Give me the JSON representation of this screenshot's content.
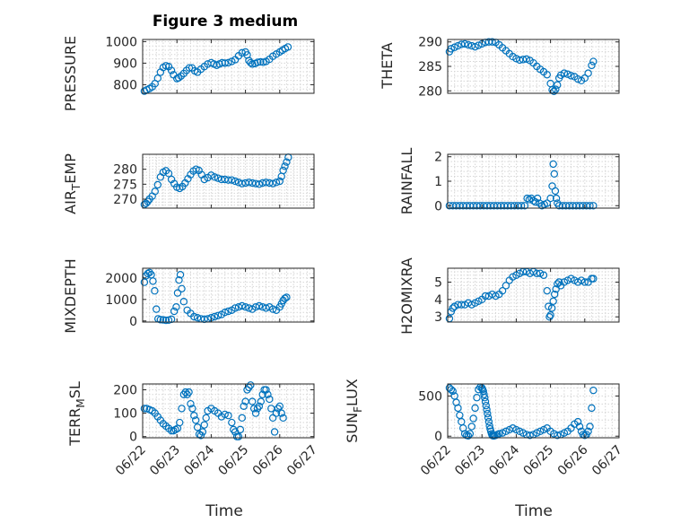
{
  "figure": {
    "title": "Figure 3 medium",
    "marker_color": "#0072bd"
  },
  "chart_data": [
    {
      "type": "scatter",
      "name": "PRESSURE",
      "ylabel": "PRESSURE",
      "xlim": [
        0,
        5
      ],
      "ylim": [
        760,
        1010
      ],
      "xticks": [
        0,
        1,
        2,
        3,
        4,
        5
      ],
      "xticklabels": [
        "06/22",
        "06/23",
        "06/24",
        "06/25",
        "06/26",
        "06/27"
      ],
      "yticks": [
        800,
        900,
        1000
      ],
      "show_xticklabels": false,
      "x": [
        0.05,
        0.12,
        0.2,
        0.28,
        0.36,
        0.44,
        0.52,
        0.6,
        0.68,
        0.76,
        0.84,
        0.9,
        1.0,
        1.05,
        1.12,
        1.2,
        1.28,
        1.36,
        1.44,
        1.52,
        1.6,
        1.7,
        1.8,
        1.9,
        2.0,
        2.08,
        2.16,
        2.24,
        2.32,
        2.4,
        2.5,
        2.6,
        2.7,
        2.8,
        2.9,
        3.0,
        3.05,
        3.1,
        3.15,
        3.2,
        3.28,
        3.36,
        3.44,
        3.52,
        3.6,
        3.7,
        3.8,
        3.9,
        4.0,
        4.08,
        4.16,
        4.24
      ],
      "y": [
        770,
        776,
        782,
        790,
        805,
        830,
        858,
        880,
        888,
        884,
        866,
        846,
        828,
        832,
        840,
        852,
        866,
        878,
        878,
        864,
        858,
        872,
        884,
        896,
        902,
        896,
        890,
        896,
        902,
        900,
        902,
        908,
        916,
        934,
        948,
        952,
        938,
        912,
        902,
        896,
        898,
        904,
        906,
        904,
        908,
        918,
        932,
        942,
        952,
        960,
        968,
        975
      ]
    },
    {
      "type": "scatter",
      "name": "THETA",
      "ylabel": "THETA",
      "xlim": [
        0,
        5
      ],
      "ylim": [
        279.5,
        290.5
      ],
      "xticks": [
        0,
        1,
        2,
        3,
        4,
        5
      ],
      "xticklabels": [
        "06/22",
        "06/23",
        "06/24",
        "06/25",
        "06/26",
        "06/27"
      ],
      "yticks": [
        280,
        285,
        290
      ],
      "show_xticklabels": false,
      "x": [
        0.05,
        0.1,
        0.2,
        0.3,
        0.4,
        0.5,
        0.6,
        0.7,
        0.8,
        0.9,
        1.0,
        1.1,
        1.2,
        1.3,
        1.4,
        1.5,
        1.6,
        1.7,
        1.8,
        1.9,
        2.0,
        2.1,
        2.2,
        2.3,
        2.4,
        2.5,
        2.6,
        2.7,
        2.8,
        2.9,
        3.0,
        3.05,
        3.1,
        3.15,
        3.2,
        3.25,
        3.3,
        3.4,
        3.5,
        3.6,
        3.7,
        3.8,
        3.9,
        4.0,
        4.1,
        4.2,
        4.25
      ],
      "y": [
        288.0,
        288.6,
        288.9,
        289.2,
        289.5,
        289.6,
        289.4,
        289.2,
        289.0,
        289.3,
        289.6,
        289.9,
        290.0,
        290.0,
        289.9,
        289.4,
        288.8,
        288.2,
        287.6,
        287.0,
        286.6,
        286.3,
        286.4,
        286.5,
        286.2,
        285.7,
        285.0,
        284.4,
        283.9,
        283.3,
        281.5,
        280.2,
        279.9,
        280.3,
        281.2,
        282.6,
        283.2,
        283.6,
        283.4,
        283.1,
        282.9,
        282.4,
        282.1,
        282.6,
        283.6,
        285.2,
        286.0
      ]
    },
    {
      "type": "scatter",
      "name": "AIR_TEMP",
      "ylabel": "AIR_TEMP",
      "xlim": [
        0,
        5
      ],
      "ylim": [
        267,
        285
      ],
      "xticks": [
        0,
        1,
        2,
        3,
        4,
        5
      ],
      "xticklabels": [
        "06/22",
        "06/23",
        "06/24",
        "06/25",
        "06/26",
        "06/27"
      ],
      "yticks": [
        270,
        275,
        280
      ],
      "show_xticklabels": false,
      "x": [
        0.05,
        0.1,
        0.15,
        0.2,
        0.28,
        0.36,
        0.44,
        0.52,
        0.6,
        0.68,
        0.76,
        0.84,
        0.92,
        1.0,
        1.08,
        1.16,
        1.24,
        1.32,
        1.4,
        1.48,
        1.56,
        1.64,
        1.72,
        1.8,
        1.9,
        2.0,
        2.1,
        2.2,
        2.3,
        2.4,
        2.5,
        2.6,
        2.7,
        2.8,
        2.9,
        3.0,
        3.1,
        3.2,
        3.3,
        3.4,
        3.5,
        3.6,
        3.7,
        3.8,
        3.9,
        4.0,
        4.05,
        4.1,
        4.15,
        4.2,
        4.25
      ],
      "y": [
        268.2,
        268.6,
        269.2,
        270.0,
        271.0,
        272.6,
        274.8,
        277.4,
        279.0,
        279.5,
        278.6,
        276.6,
        275.2,
        274.0,
        273.6,
        274.2,
        275.4,
        276.8,
        278.2,
        279.4,
        280.0,
        279.6,
        278.2,
        276.6,
        277.2,
        278.0,
        277.4,
        277.0,
        276.6,
        276.6,
        276.4,
        276.4,
        276.0,
        275.6,
        275.2,
        275.4,
        275.6,
        275.4,
        275.2,
        275.0,
        275.4,
        275.6,
        275.4,
        275.2,
        275.6,
        276.0,
        277.6,
        279.6,
        281.0,
        282.4,
        284.0
      ]
    },
    {
      "type": "scatter",
      "name": "RAINFALL",
      "ylabel": "RAINFALL",
      "xlim": [
        0,
        5
      ],
      "ylim": [
        -0.1,
        2.1
      ],
      "xticks": [
        0,
        1,
        2,
        3,
        4,
        5
      ],
      "xticklabels": [
        "06/22",
        "06/23",
        "06/24",
        "06/25",
        "06/26",
        "06/27"
      ],
      "yticks": [
        0,
        1,
        2
      ],
      "show_xticklabels": false,
      "x": [
        0.05,
        0.15,
        0.25,
        0.35,
        0.45,
        0.55,
        0.65,
        0.75,
        0.85,
        0.95,
        1.05,
        1.15,
        1.25,
        1.35,
        1.45,
        1.55,
        1.65,
        1.75,
        1.85,
        1.95,
        2.05,
        2.15,
        2.25,
        2.32,
        2.38,
        2.44,
        2.5,
        2.56,
        2.62,
        2.68,
        2.75,
        2.82,
        2.9,
        3.0,
        3.05,
        3.08,
        3.11,
        3.14,
        3.17,
        3.2,
        3.25,
        3.35,
        3.45,
        3.55,
        3.65,
        3.75,
        3.85,
        3.95,
        4.05,
        4.15,
        4.25
      ],
      "y": [
        0,
        0,
        0,
        0,
        0,
        0,
        0,
        0,
        0,
        0,
        0,
        0,
        0,
        0,
        0,
        0,
        0,
        0,
        0,
        0,
        0,
        0,
        0,
        0.3,
        0.25,
        0.3,
        0.2,
        0.15,
        0.3,
        0.1,
        0,
        0.05,
        0.1,
        0.3,
        0.8,
        1.7,
        1.3,
        0.6,
        0.3,
        0.1,
        0,
        0,
        0,
        0,
        0,
        0,
        0,
        0,
        0,
        0,
        0
      ]
    },
    {
      "type": "scatter",
      "name": "MIXDEPTH",
      "ylabel": "MIXDEPTH",
      "xlim": [
        0,
        5
      ],
      "ylim": [
        -50,
        2450
      ],
      "xticks": [
        0,
        1,
        2,
        3,
        4,
        5
      ],
      "xticklabels": [
        "06/22",
        "06/23",
        "06/24",
        "06/25",
        "06/26",
        "06/27"
      ],
      "yticks": [
        0,
        1000,
        2000
      ],
      "show_xticklabels": false,
      "x": [
        0.05,
        0.1,
        0.15,
        0.2,
        0.25,
        0.3,
        0.35,
        0.4,
        0.45,
        0.52,
        0.6,
        0.68,
        0.76,
        0.84,
        0.92,
        0.98,
        1.02,
        1.06,
        1.1,
        1.14,
        1.2,
        1.3,
        1.4,
        1.5,
        1.6,
        1.7,
        1.8,
        1.9,
        2.0,
        2.1,
        2.2,
        2.3,
        2.4,
        2.5,
        2.6,
        2.7,
        2.8,
        2.9,
        3.0,
        3.1,
        3.2,
        3.3,
        3.4,
        3.5,
        3.6,
        3.7,
        3.8,
        3.9,
        4.0,
        4.05,
        4.1,
        4.15,
        4.2
      ],
      "y": [
        1800,
        2100,
        2200,
        2250,
        2150,
        1850,
        1400,
        550,
        100,
        60,
        50,
        30,
        40,
        80,
        450,
        650,
        1300,
        1900,
        2150,
        1500,
        900,
        500,
        350,
        200,
        150,
        100,
        80,
        100,
        150,
        200,
        250,
        300,
        400,
        450,
        500,
        600,
        650,
        700,
        650,
        600,
        550,
        650,
        700,
        650,
        600,
        650,
        550,
        500,
        650,
        800,
        950,
        1050,
        1100
      ]
    },
    {
      "type": "scatter",
      "name": "H2OMIXRA",
      "ylabel": "H2OMIXRA",
      "xlim": [
        0,
        5
      ],
      "ylim": [
        2.7,
        5.8
      ],
      "xticks": [
        0,
        1,
        2,
        3,
        4,
        5
      ],
      "xticklabels": [
        "06/22",
        "06/23",
        "06/24",
        "06/25",
        "06/26",
        "06/27"
      ],
      "yticks": [
        3,
        4,
        5
      ],
      "show_xticklabels": false,
      "x": [
        0.05,
        0.1,
        0.15,
        0.2,
        0.3,
        0.4,
        0.5,
        0.6,
        0.7,
        0.8,
        0.9,
        1.0,
        1.1,
        1.2,
        1.3,
        1.4,
        1.5,
        1.6,
        1.7,
        1.8,
        1.9,
        2.0,
        2.1,
        2.2,
        2.3,
        2.4,
        2.5,
        2.6,
        2.7,
        2.8,
        2.9,
        2.94,
        2.97,
        3.0,
        3.04,
        3.08,
        3.12,
        3.16,
        3.2,
        3.25,
        3.3,
        3.4,
        3.5,
        3.6,
        3.7,
        3.8,
        3.9,
        4.0,
        4.1,
        4.2,
        4.25
      ],
      "y": [
        2.9,
        3.3,
        3.5,
        3.6,
        3.7,
        3.7,
        3.7,
        3.8,
        3.7,
        3.8,
        3.9,
        4.0,
        4.2,
        4.2,
        4.3,
        4.2,
        4.3,
        4.5,
        4.8,
        5.1,
        5.3,
        5.4,
        5.5,
        5.6,
        5.6,
        5.5,
        5.6,
        5.5,
        5.5,
        5.4,
        4.5,
        3.6,
        3.0,
        3.1,
        3.5,
        3.9,
        4.3,
        4.6,
        4.9,
        5.0,
        4.8,
        5.0,
        5.1,
        5.2,
        5.1,
        5.0,
        5.1,
        5.0,
        5.0,
        5.2,
        5.2
      ]
    },
    {
      "type": "scatter",
      "name": "TERR_MSL",
      "ylabel": "TERR_MSL",
      "xlim": [
        0,
        5
      ],
      "ylim": [
        -5,
        225
      ],
      "xticks": [
        0,
        1,
        2,
        3,
        4,
        5
      ],
      "xticklabels": [
        "06/22",
        "06/23",
        "06/24",
        "06/25",
        "06/26",
        "06/27"
      ],
      "yticks": [
        0,
        100,
        200
      ],
      "show_xticklabels": true,
      "x": [
        0.05,
        0.12,
        0.2,
        0.28,
        0.36,
        0.44,
        0.52,
        0.6,
        0.68,
        0.76,
        0.84,
        0.9,
        0.96,
        1.02,
        1.08,
        1.14,
        1.2,
        1.25,
        1.3,
        1.35,
        1.4,
        1.45,
        1.5,
        1.55,
        1.6,
        1.65,
        1.7,
        1.75,
        1.8,
        1.85,
        1.9,
        2.0,
        2.1,
        2.2,
        2.3,
        2.4,
        2.5,
        2.6,
        2.65,
        2.7,
        2.75,
        2.8,
        2.85,
        2.9,
        2.95,
        3.0,
        3.05,
        3.1,
        3.15,
        3.2,
        3.25,
        3.3,
        3.35,
        3.4,
        3.45,
        3.5,
        3.55,
        3.6,
        3.65,
        3.7,
        3.75,
        3.8,
        3.85,
        3.9,
        3.95,
        4.0,
        4.05,
        4.1
      ],
      "y": [
        120,
        120,
        115,
        110,
        100,
        85,
        70,
        55,
        45,
        35,
        25,
        25,
        30,
        35,
        60,
        120,
        180,
        190,
        180,
        190,
        140,
        120,
        90,
        70,
        40,
        10,
        5,
        20,
        50,
        80,
        110,
        120,
        110,
        100,
        85,
        95,
        90,
        60,
        30,
        20,
        0,
        0,
        30,
        80,
        130,
        150,
        200,
        210,
        220,
        150,
        120,
        100,
        120,
        130,
        150,
        180,
        200,
        200,
        180,
        160,
        120,
        80,
        20,
        100,
        120,
        130,
        100,
        80
      ]
    },
    {
      "type": "scatter",
      "name": "SUN_FLUX",
      "ylabel": "SUN_FLUX",
      "xlim": [
        0,
        5
      ],
      "ylim": [
        -20,
        650
      ],
      "xticks": [
        0,
        1,
        2,
        3,
        4,
        5
      ],
      "xticklabels": [
        "06/22",
        "06/23",
        "06/24",
        "06/25",
        "06/26",
        "06/27"
      ],
      "yticks": [
        0,
        500
      ],
      "show_xticklabels": true,
      "x": [
        0.05,
        0.1,
        0.15,
        0.2,
        0.25,
        0.3,
        0.35,
        0.4,
        0.45,
        0.5,
        0.55,
        0.6,
        0.65,
        0.7,
        0.75,
        0.8,
        0.85,
        0.9,
        0.95,
        1.0,
        1.02,
        1.04,
        1.06,
        1.08,
        1.1,
        1.12,
        1.14,
        1.16,
        1.18,
        1.2,
        1.22,
        1.24,
        1.26,
        1.28,
        1.3,
        1.32,
        1.34,
        1.36,
        1.4,
        1.45,
        1.5,
        1.6,
        1.7,
        1.8,
        1.9,
        2.0,
        2.1,
        2.2,
        2.3,
        2.4,
        2.5,
        2.6,
        2.7,
        2.8,
        2.9,
        3.0,
        3.1,
        3.2,
        3.3,
        3.4,
        3.5,
        3.6,
        3.7,
        3.8,
        3.85,
        3.9,
        3.95,
        4.0,
        4.05,
        4.1,
        4.15,
        4.2,
        4.25
      ],
      "y": [
        600,
        580,
        560,
        500,
        420,
        350,
        260,
        180,
        100,
        30,
        10,
        5,
        30,
        120,
        220,
        350,
        480,
        580,
        610,
        600,
        580,
        560,
        520,
        480,
        430,
        380,
        330,
        280,
        230,
        180,
        130,
        90,
        60,
        30,
        10,
        5,
        5,
        5,
        10,
        20,
        30,
        40,
        60,
        80,
        100,
        80,
        60,
        40,
        20,
        10,
        20,
        40,
        60,
        80,
        100,
        60,
        30,
        10,
        20,
        40,
        60,
        100,
        150,
        180,
        120,
        60,
        20,
        10,
        20,
        60,
        120,
        350,
        570
      ]
    }
  ],
  "axis_labels": {
    "xlabel": "Time",
    "pressure": "PRESSURE",
    "theta": "THETA",
    "air_temp_base": "AIR",
    "air_temp_sub": "T",
    "air_temp_rest": "EMP",
    "rainfall": "RAINFALL",
    "mixdepth": "MIXDEPTH",
    "h2omixra": "H2OMIXRA",
    "terr_base": "TERR",
    "terr_sub": "M",
    "terr_rest": "SL",
    "sun_base": "SUN",
    "sun_sub": "F",
    "sun_rest": "LUX"
  }
}
